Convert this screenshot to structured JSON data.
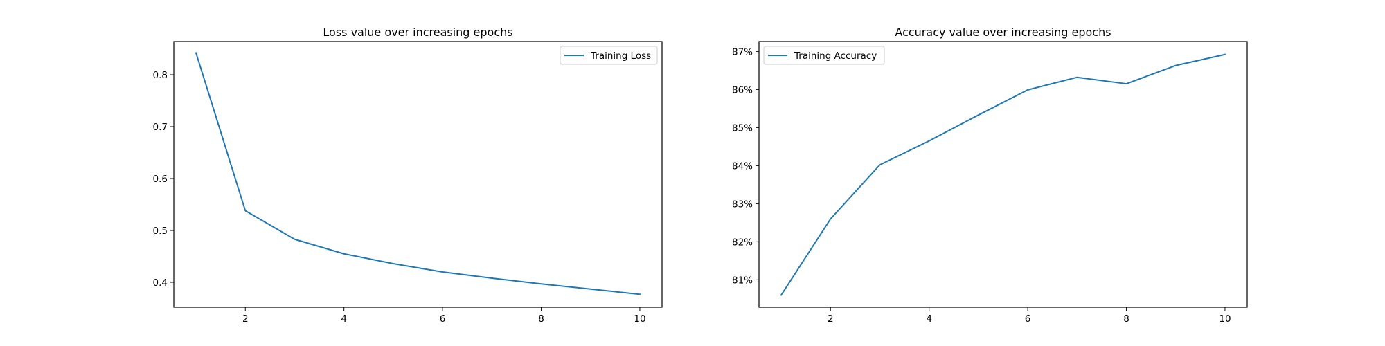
{
  "colors": {
    "series": "#1f77b4",
    "axes": "#000000",
    "legend_border": "#cccccc",
    "background": "#ffffff"
  },
  "chart_data": [
    {
      "type": "line",
      "title": "Loss value over increasing epochs",
      "xlabel": "",
      "ylabel": "",
      "xlim": [
        0.55,
        10.45
      ],
      "ylim": [
        0.352,
        0.864
      ],
      "x_ticks": [
        2,
        4,
        6,
        8,
        10
      ],
      "y_ticks": [
        0.4,
        0.5,
        0.6,
        0.7,
        0.8
      ],
      "y_tick_format": "fixed1",
      "grid": false,
      "legend_position": "upper right",
      "x": [
        1,
        2,
        3,
        4,
        5,
        6,
        7,
        8,
        9,
        10
      ],
      "series": [
        {
          "name": "Training Loss",
          "color": "#1f77b4",
          "values": [
            0.842,
            0.538,
            0.483,
            0.455,
            0.436,
            0.42,
            0.408,
            0.397,
            0.387,
            0.377
          ]
        }
      ]
    },
    {
      "type": "line",
      "title": "Accuracy value over increasing epochs",
      "xlabel": "",
      "ylabel": "",
      "xlim": [
        0.55,
        10.45
      ],
      "ylim": [
        80.28,
        87.26
      ],
      "x_ticks": [
        2,
        4,
        6,
        8,
        10
      ],
      "y_ticks": [
        81,
        82,
        83,
        84,
        85,
        86,
        87
      ],
      "y_tick_format": "percent",
      "grid": false,
      "legend_position": "upper left",
      "x": [
        1,
        2,
        3,
        4,
        5,
        6,
        7,
        8,
        9,
        10
      ],
      "series": [
        {
          "name": "Training Accuracy",
          "color": "#1f77b4",
          "values": [
            80.6,
            82.6,
            84.02,
            84.65,
            85.33,
            85.99,
            86.32,
            86.15,
            86.63,
            86.92
          ]
        }
      ]
    }
  ]
}
